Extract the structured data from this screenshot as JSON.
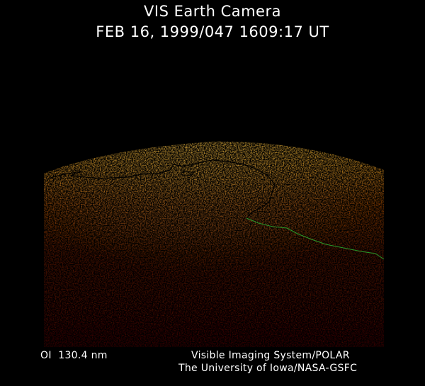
{
  "header": {
    "title": "VIS Earth Camera",
    "timestamp": "FEB 16, 1999/047 1609:17 UT"
  },
  "image": {
    "subject": "auroral-earth-limb",
    "colors": {
      "limb_bright": "#ffb020",
      "mid": "#c05000",
      "dark": "#4a0a00",
      "background": "#000000",
      "coastline": "#000000",
      "terminator_line": "#2a9a2a"
    }
  },
  "footer": {
    "wavelength": "OI  130.4 nm",
    "instrument": "Visible Imaging System/POLAR",
    "institution": "The University of Iowa/NASA-GSFC"
  }
}
